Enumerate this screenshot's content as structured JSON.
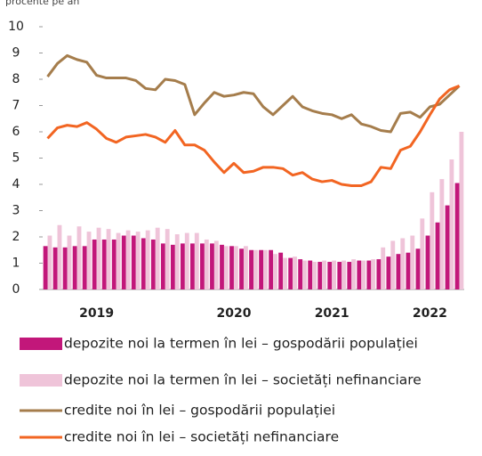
{
  "chart_data": {
    "type": "bar_line",
    "y_label": "procente pe an",
    "categories": [
      null,
      null,
      null,
      null,
      null,
      "2019",
      null,
      null,
      null,
      null,
      null,
      null,
      null,
      null,
      null,
      null,
      null,
      null,
      null,
      "2020",
      null,
      null,
      null,
      null,
      null,
      null,
      null,
      null,
      null,
      "2021",
      null,
      null,
      null,
      null,
      null,
      null,
      null,
      null,
      null,
      "2022",
      null,
      null,
      null
    ],
    "ylim": [
      0,
      10
    ],
    "yticks": [
      0,
      1,
      2,
      3,
      4,
      5,
      6,
      7,
      8,
      9,
      10
    ],
    "series": [
      {
        "name": "depozite noi la termen în lei – gospodării populației",
        "kind": "bar",
        "color": "#c2177a",
        "values": [
          1.65,
          1.6,
          1.6,
          1.65,
          1.65,
          1.9,
          1.9,
          1.9,
          2.05,
          2.05,
          1.95,
          1.9,
          1.75,
          1.7,
          1.75,
          1.75,
          1.75,
          1.75,
          1.7,
          1.65,
          1.55,
          1.5,
          1.5,
          1.5,
          1.4,
          1.2,
          1.15,
          1.1,
          1.05,
          1.05,
          1.05,
          1.05,
          1.1,
          1.1,
          1.15,
          1.25,
          1.35,
          1.4,
          1.55,
          2.05,
          2.55,
          3.2,
          4.05
        ]
      },
      {
        "name": "depozite noi la termen în lei – societăți nefinanciare",
        "kind": "bar",
        "color": "#efc4d9",
        "values": [
          2.05,
          2.45,
          2.05,
          2.4,
          2.2,
          2.35,
          2.3,
          2.15,
          2.25,
          2.2,
          2.25,
          2.35,
          2.3,
          2.1,
          2.15,
          2.15,
          1.9,
          1.85,
          1.65,
          1.65,
          1.65,
          1.5,
          1.5,
          1.35,
          1.2,
          1.25,
          1.1,
          1.05,
          1.1,
          1.1,
          1.1,
          1.15,
          1.1,
          1.15,
          1.6,
          1.85,
          1.95,
          2.05,
          2.7,
          3.7,
          4.2,
          4.95,
          6.0
        ]
      },
      {
        "name": "credite noi în lei – gospodării populației",
        "kind": "line",
        "color": "#a57d4c",
        "values": [
          8.1,
          8.6,
          8.9,
          8.75,
          8.65,
          8.15,
          8.05,
          8.05,
          8.05,
          7.95,
          7.65,
          7.6,
          8.0,
          7.95,
          7.8,
          6.65,
          7.1,
          7.5,
          7.35,
          7.4,
          7.5,
          7.45,
          6.95,
          6.65,
          7.0,
          7.35,
          6.95,
          6.8,
          6.7,
          6.65,
          6.5,
          6.65,
          6.3,
          6.2,
          6.05,
          6.0,
          6.7,
          6.75,
          6.55,
          6.95,
          7.05,
          7.4,
          7.75
        ]
      },
      {
        "name": "credite noi în lei – societăți nefinanciare",
        "kind": "line",
        "color": "#f26522",
        "values": [
          5.75,
          6.15,
          6.25,
          6.2,
          6.35,
          6.1,
          5.75,
          5.6,
          5.8,
          5.85,
          5.9,
          5.8,
          5.6,
          6.05,
          5.5,
          5.5,
          5.3,
          4.85,
          4.45,
          4.8,
          4.45,
          4.5,
          4.65,
          4.65,
          4.6,
          4.35,
          4.45,
          4.2,
          4.1,
          4.15,
          4.0,
          3.95,
          3.95,
          4.1,
          4.65,
          4.6,
          5.3,
          5.45,
          6.0,
          6.65,
          7.25,
          7.6,
          7.75
        ]
      }
    ]
  }
}
